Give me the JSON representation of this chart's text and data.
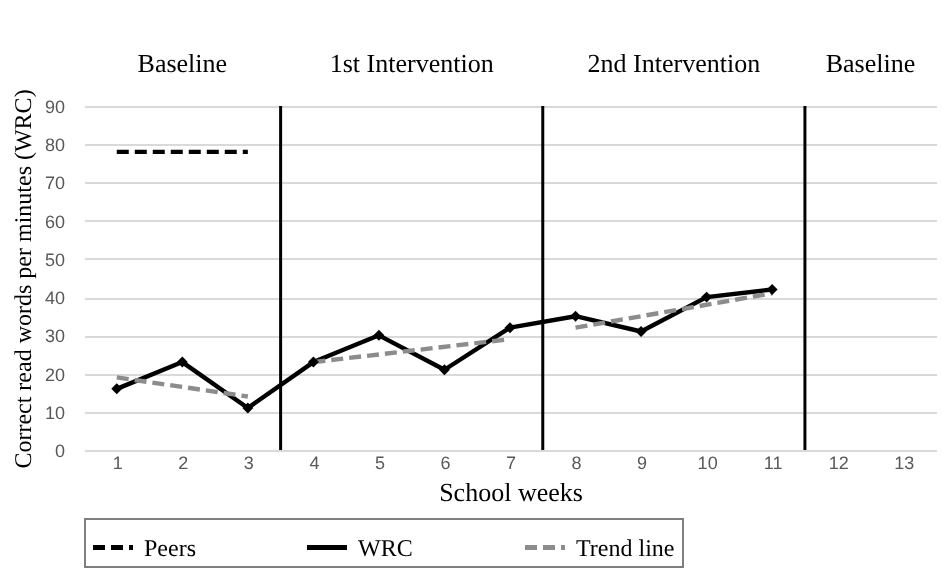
{
  "chart_data": {
    "type": "line",
    "xlabel": "School weeks",
    "ylabel": "Correct read words per minutes (WRC)",
    "xlim": [
      0.5,
      13.5
    ],
    "xticks": [
      1,
      2,
      3,
      4,
      5,
      6,
      7,
      8,
      9,
      10,
      11,
      12,
      13
    ],
    "ylim": [
      0,
      90
    ],
    "yticks": [
      0,
      10,
      20,
      30,
      40,
      50,
      60,
      70,
      80,
      90
    ],
    "grid": "y",
    "legend": "bottom",
    "ref_lines": [
      {
        "axis": "x",
        "value": 3.5,
        "color": "#000000"
      },
      {
        "axis": "x",
        "value": 7.5,
        "color": "#000000"
      },
      {
        "axis": "x",
        "value": 11.5,
        "color": "#000000"
      }
    ],
    "annotations": [
      "Baseline",
      "1st Intervention",
      "2nd Intervention",
      "Baseline"
    ],
    "series": [
      {
        "name": "Peers",
        "color": "#000000",
        "line_style": "dashed",
        "x": [
          1,
          2,
          3
        ],
        "values": [
          78,
          78,
          78
        ]
      },
      {
        "name": "WRC",
        "color": "#000000",
        "line_style": "solid",
        "marker": "diamond",
        "x": [
          1,
          2,
          3,
          4,
          5,
          6,
          7,
          8,
          9,
          10,
          11
        ],
        "values": [
          16,
          23,
          11,
          23,
          30,
          21,
          32,
          35,
          31,
          40,
          42
        ]
      },
      {
        "name": "Trend line",
        "color": "#8c8c8c",
        "line_style": "dashed",
        "x": [
          1,
          3,
          3.5,
          4,
          7,
          7.5,
          8,
          11
        ],
        "values": [
          19,
          14,
          null,
          23,
          29,
          null,
          32,
          41
        ]
      }
    ]
  }
}
